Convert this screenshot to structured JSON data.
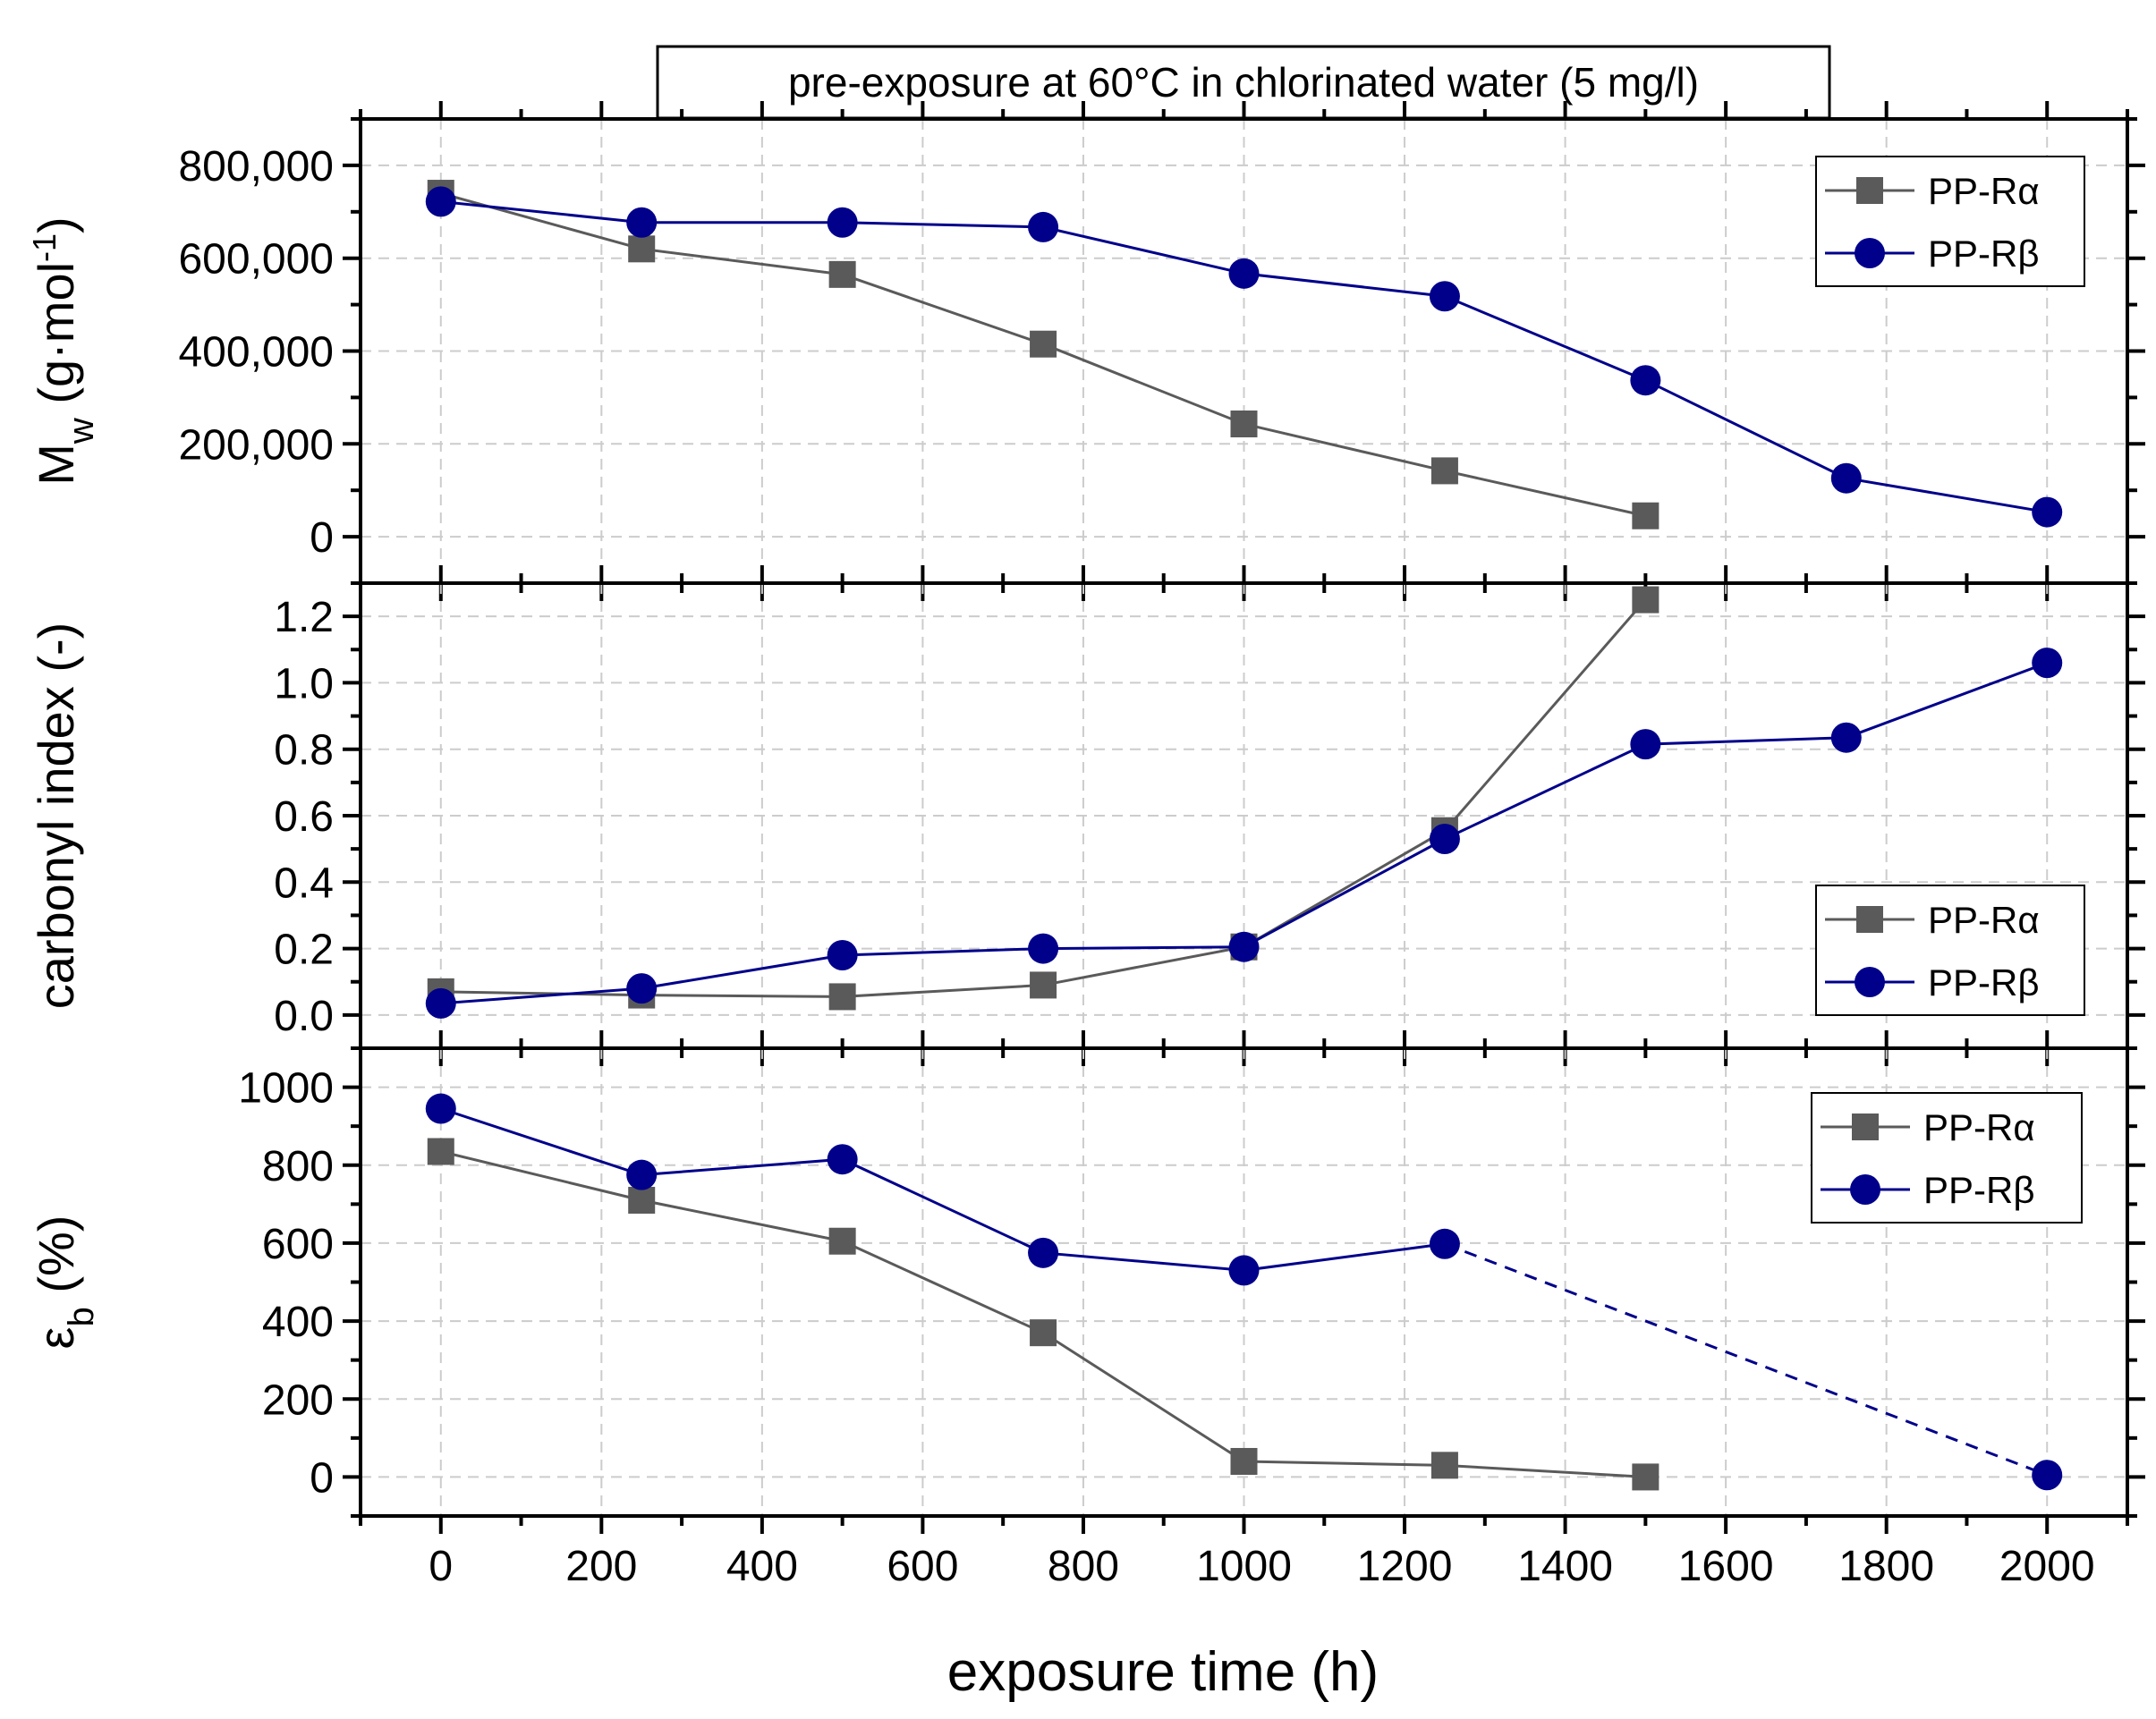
{
  "figure": {
    "title": "pre-exposure at 60°C in chlorinated water (5 mg/l)",
    "xlabel": "exposure time (h)",
    "colors": {
      "alpha": "#5a5a5a",
      "beta": "#00008b"
    }
  },
  "chart_data": [
    {
      "type": "line",
      "id": "mw",
      "ylabel": "M_w (g·mol⁻¹)",
      "ylabel_parts": {
        "main": "M",
        "sub": "w",
        "rest": " (g·mol",
        "sup": "-1",
        "end": ")"
      },
      "xlim": [
        -100,
        2100
      ],
      "ylim": [
        -100000,
        900000
      ],
      "xticks": [
        0,
        200,
        400,
        600,
        800,
        1000,
        1200,
        1400,
        1600,
        1800,
        2000
      ],
      "yticks": [
        0,
        200000,
        400000,
        600000,
        800000
      ],
      "ytick_labels": [
        "0",
        "200,000",
        "400,000",
        "600,000",
        "800,000"
      ],
      "legend_position": "top-right",
      "series": [
        {
          "name": "PP-Rα",
          "color": "#5a5a5a",
          "marker": "square",
          "x": [
            0,
            250,
            500,
            750,
            1000,
            1250,
            1500
          ],
          "y": [
            740000,
            620000,
            565000,
            415000,
            243000,
            142000,
            45000
          ]
        },
        {
          "name": "PP-Rβ",
          "color": "#00008b",
          "marker": "circle",
          "x": [
            0,
            250,
            500,
            750,
            1000,
            1250,
            1500,
            1750,
            2000
          ],
          "y": [
            722000,
            677000,
            677000,
            667000,
            567000,
            518000,
            337000,
            126000,
            53000
          ]
        }
      ]
    },
    {
      "type": "line",
      "id": "ci",
      "ylabel": "carbonyl index (-)",
      "xlim": [
        -100,
        2100
      ],
      "ylim": [
        -0.1,
        1.3
      ],
      "xticks": [
        0,
        200,
        400,
        600,
        800,
        1000,
        1200,
        1400,
        1600,
        1800,
        2000
      ],
      "yticks": [
        0,
        0.2,
        0.4,
        0.6,
        0.8,
        1.0,
        1.2
      ],
      "ytick_labels": [
        "0.0",
        "0.2",
        "0.4",
        "0.6",
        "0.8",
        "1.0",
        "1.2"
      ],
      "legend_position": "bottom-right",
      "series": [
        {
          "name": "PP-Rα",
          "color": "#5a5a5a",
          "marker": "square",
          "x": [
            0,
            250,
            500,
            750,
            1000,
            1250,
            1500
          ],
          "y": [
            0.07,
            0.06,
            0.055,
            0.09,
            0.205,
            0.555,
            1.25
          ]
        },
        {
          "name": "PP-Rβ",
          "color": "#00008b",
          "marker": "circle",
          "x": [
            0,
            250,
            500,
            750,
            1000,
            1250,
            1500,
            1750,
            2000
          ],
          "y": [
            0.035,
            0.08,
            0.18,
            0.2,
            0.205,
            0.53,
            0.815,
            0.835,
            1.06
          ]
        }
      ]
    },
    {
      "type": "line",
      "id": "eb",
      "ylabel": "ε_b (%)",
      "ylabel_parts": {
        "main": "ε",
        "sub": "b",
        "rest": " (%)"
      },
      "xlim": [
        -100,
        2100
      ],
      "ylim": [
        -100,
        1100
      ],
      "xticks": [
        0,
        200,
        400,
        600,
        800,
        1000,
        1200,
        1400,
        1600,
        1800,
        2000
      ],
      "xtick_labels": [
        "0",
        "200",
        "400",
        "600",
        "800",
        "1000",
        "1200",
        "1400",
        "1600",
        "1800",
        "2000"
      ],
      "yticks": [
        0,
        200,
        400,
        600,
        800,
        1000
      ],
      "ytick_labels": [
        "0",
        "200",
        "400",
        "600",
        "800",
        "1000"
      ],
      "legend_position": "top-right",
      "series": [
        {
          "name": "PP-Rα",
          "color": "#5a5a5a",
          "marker": "square",
          "x": [
            0,
            250,
            500,
            750,
            1000,
            1250,
            1500
          ],
          "y": [
            835,
            710,
            605,
            370,
            40,
            30,
            0
          ]
        },
        {
          "name": "PP-Rβ",
          "color": "#00008b",
          "marker": "circle",
          "x": [
            0,
            250,
            500,
            750,
            1000,
            1250,
            2000
          ],
          "y": [
            945,
            775,
            815,
            575,
            530,
            598,
            5
          ],
          "dashed_last_segment": true
        }
      ]
    }
  ]
}
